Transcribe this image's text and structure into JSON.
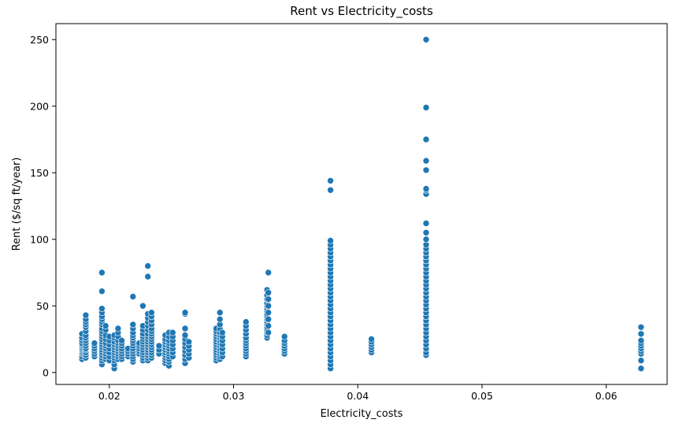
{
  "chart_data": {
    "type": "scatter",
    "title": "Rent vs Electricity_costs",
    "xlabel": "Electricity_costs",
    "ylabel": "Rent ($/sq ft/year)",
    "xlim": [
      0.0157,
      0.0649
    ],
    "ylim": [
      -9,
      262
    ],
    "xticks": [
      0.02,
      0.03,
      0.04,
      0.05,
      0.06
    ],
    "xtick_labels": [
      "0.02",
      "0.03",
      "0.04",
      "0.05",
      "0.06"
    ],
    "yticks": [
      0,
      50,
      100,
      150,
      200,
      250
    ],
    "ytick_labels": [
      "0",
      "50",
      "100",
      "150",
      "200",
      "250"
    ],
    "grid": false,
    "legend": "none",
    "marker_color": "#1f77b4",
    "marker_edge": "#ffffff",
    "clusters": [
      {
        "x": 0.0178,
        "min": 10,
        "max": 29,
        "values": [
          10,
          12,
          14,
          15,
          16,
          17,
          18,
          19,
          20,
          21,
          22,
          24,
          26,
          29
        ]
      },
      {
        "x": 0.0181,
        "min": 11,
        "max": 43,
        "values": [
          11,
          13,
          15,
          17,
          18,
          20,
          22,
          24,
          26,
          28,
          31,
          34,
          36,
          38,
          40,
          43
        ]
      },
      {
        "x": 0.0188,
        "min": 12,
        "max": 22,
        "values": [
          12,
          14,
          16,
          18,
          20,
          22
        ]
      },
      {
        "x": 0.0194,
        "min": 6,
        "max": 75,
        "values": [
          6,
          9,
          11,
          13,
          15,
          17,
          19,
          21,
          23,
          25,
          27,
          29,
          31,
          33,
          36,
          38,
          40,
          42,
          45,
          48,
          61,
          75
        ]
      },
      {
        "x": 0.0197,
        "min": 10,
        "max": 35,
        "values": [
          10,
          12,
          14,
          16,
          18,
          20,
          22,
          25,
          28,
          32,
          35
        ]
      },
      {
        "x": 0.02,
        "min": 9,
        "max": 27,
        "values": [
          9,
          12,
          15,
          18,
          21,
          24,
          27
        ]
      },
      {
        "x": 0.0204,
        "min": 3,
        "max": 28,
        "values": [
          3,
          6,
          9,
          11,
          13,
          15,
          17,
          19,
          21,
          23,
          26,
          28
        ]
      },
      {
        "x": 0.0207,
        "min": 10,
        "max": 33,
        "values": [
          10,
          12,
          14,
          16,
          18,
          20,
          22,
          24,
          27,
          30,
          33
        ]
      },
      {
        "x": 0.021,
        "min": 10,
        "max": 24,
        "values": [
          10,
          12,
          14,
          16,
          18,
          20,
          22,
          24
        ]
      },
      {
        "x": 0.0215,
        "min": 12,
        "max": 18,
        "values": [
          12,
          14,
          16,
          18
        ]
      },
      {
        "x": 0.0219,
        "min": 8,
        "max": 57,
        "values": [
          8,
          10,
          12,
          14,
          16,
          18,
          20,
          22,
          24,
          26,
          28,
          30,
          33,
          36,
          57
        ]
      },
      {
        "x": 0.0224,
        "min": 14,
        "max": 22,
        "values": [
          14,
          16,
          18,
          20,
          22
        ]
      },
      {
        "x": 0.0227,
        "min": 9,
        "max": 50,
        "values": [
          9,
          11,
          13,
          15,
          17,
          19,
          21,
          23,
          25,
          27,
          29,
          32,
          35,
          50
        ]
      },
      {
        "x": 0.0231,
        "min": 9,
        "max": 80,
        "values": [
          9,
          11,
          13,
          15,
          17,
          19,
          21,
          23,
          25,
          27,
          29,
          32,
          35,
          38,
          41,
          44,
          72,
          80
        ]
      },
      {
        "x": 0.0234,
        "min": 11,
        "max": 45,
        "values": [
          11,
          13,
          15,
          17,
          19,
          21,
          23,
          25,
          27,
          29,
          31,
          33,
          36,
          39,
          42,
          45
        ]
      },
      {
        "x": 0.024,
        "min": 14,
        "max": 20,
        "values": [
          14,
          17,
          20
        ]
      },
      {
        "x": 0.0245,
        "min": 7,
        "max": 28,
        "values": [
          7,
          9,
          11,
          13,
          15,
          17,
          19,
          21,
          23,
          25,
          28
        ]
      },
      {
        "x": 0.0248,
        "min": 5,
        "max": 30,
        "values": [
          5,
          8,
          10,
          12,
          14,
          16,
          18,
          20,
          22,
          24,
          27,
          30
        ]
      },
      {
        "x": 0.0251,
        "min": 12,
        "max": 30,
        "values": [
          12,
          15,
          18,
          21,
          24,
          27,
          30
        ]
      },
      {
        "x": 0.0261,
        "min": 7,
        "max": 45,
        "values": [
          7,
          10,
          13,
          16,
          19,
          22,
          25,
          28,
          33,
          44,
          45
        ]
      },
      {
        "x": 0.0264,
        "min": 11,
        "max": 23,
        "values": [
          11,
          14,
          17,
          20,
          23
        ]
      },
      {
        "x": 0.0286,
        "min": 9,
        "max": 33,
        "values": [
          9,
          11,
          13,
          15,
          17,
          19,
          21,
          23,
          25,
          27,
          29,
          31,
          33
        ]
      },
      {
        "x": 0.0289,
        "min": 10,
        "max": 45,
        "values": [
          10,
          12,
          14,
          16,
          18,
          20,
          22,
          24,
          26,
          28,
          30,
          33,
          36,
          40,
          45
        ]
      },
      {
        "x": 0.0291,
        "min": 12,
        "max": 30,
        "values": [
          12,
          15,
          18,
          21,
          24,
          27,
          30
        ]
      },
      {
        "x": 0.031,
        "min": 12,
        "max": 38,
        "values": [
          12,
          14,
          16,
          18,
          20,
          22,
          24,
          26,
          29,
          32,
          35,
          38
        ]
      },
      {
        "x": 0.0327,
        "min": 26,
        "max": 62,
        "values": [
          26,
          28,
          30,
          32,
          34,
          36,
          38,
          40,
          42,
          44,
          46,
          48,
          50,
          52,
          55,
          58,
          62
        ]
      },
      {
        "x": 0.0328,
        "min": 30,
        "max": 75,
        "values": [
          30,
          35,
          40,
          45,
          50,
          55,
          60,
          75
        ]
      },
      {
        "x": 0.0341,
        "min": 14,
        "max": 27,
        "values": [
          14,
          16,
          18,
          20,
          22,
          24,
          27
        ]
      },
      {
        "x": 0.0378,
        "min": 3,
        "max": 144,
        "values": [
          3,
          6,
          9,
          12,
          15,
          18,
          21,
          24,
          27,
          30,
          33,
          36,
          39,
          42,
          45,
          48,
          51,
          54,
          57,
          60,
          63,
          66,
          69,
          72,
          75,
          78,
          81,
          84,
          87,
          90,
          93,
          96,
          99,
          137,
          144
        ]
      },
      {
        "x": 0.0411,
        "min": 15,
        "max": 25,
        "values": [
          15,
          17,
          19,
          21,
          23,
          25
        ]
      },
      {
        "x": 0.0455,
        "min": 13,
        "max": 250,
        "values": [
          13,
          15,
          18,
          21,
          24,
          27,
          30,
          33,
          36,
          39,
          42,
          45,
          48,
          51,
          54,
          57,
          60,
          63,
          66,
          69,
          72,
          75,
          78,
          81,
          84,
          87,
          90,
          93,
          96,
          100,
          105,
          112,
          134,
          137,
          138,
          152,
          159,
          175,
          199,
          250
        ]
      },
      {
        "x": 0.0628,
        "min": 3,
        "max": 34,
        "values": [
          3,
          9,
          14,
          16,
          18,
          20,
          22,
          24,
          29,
          34
        ]
      }
    ]
  }
}
